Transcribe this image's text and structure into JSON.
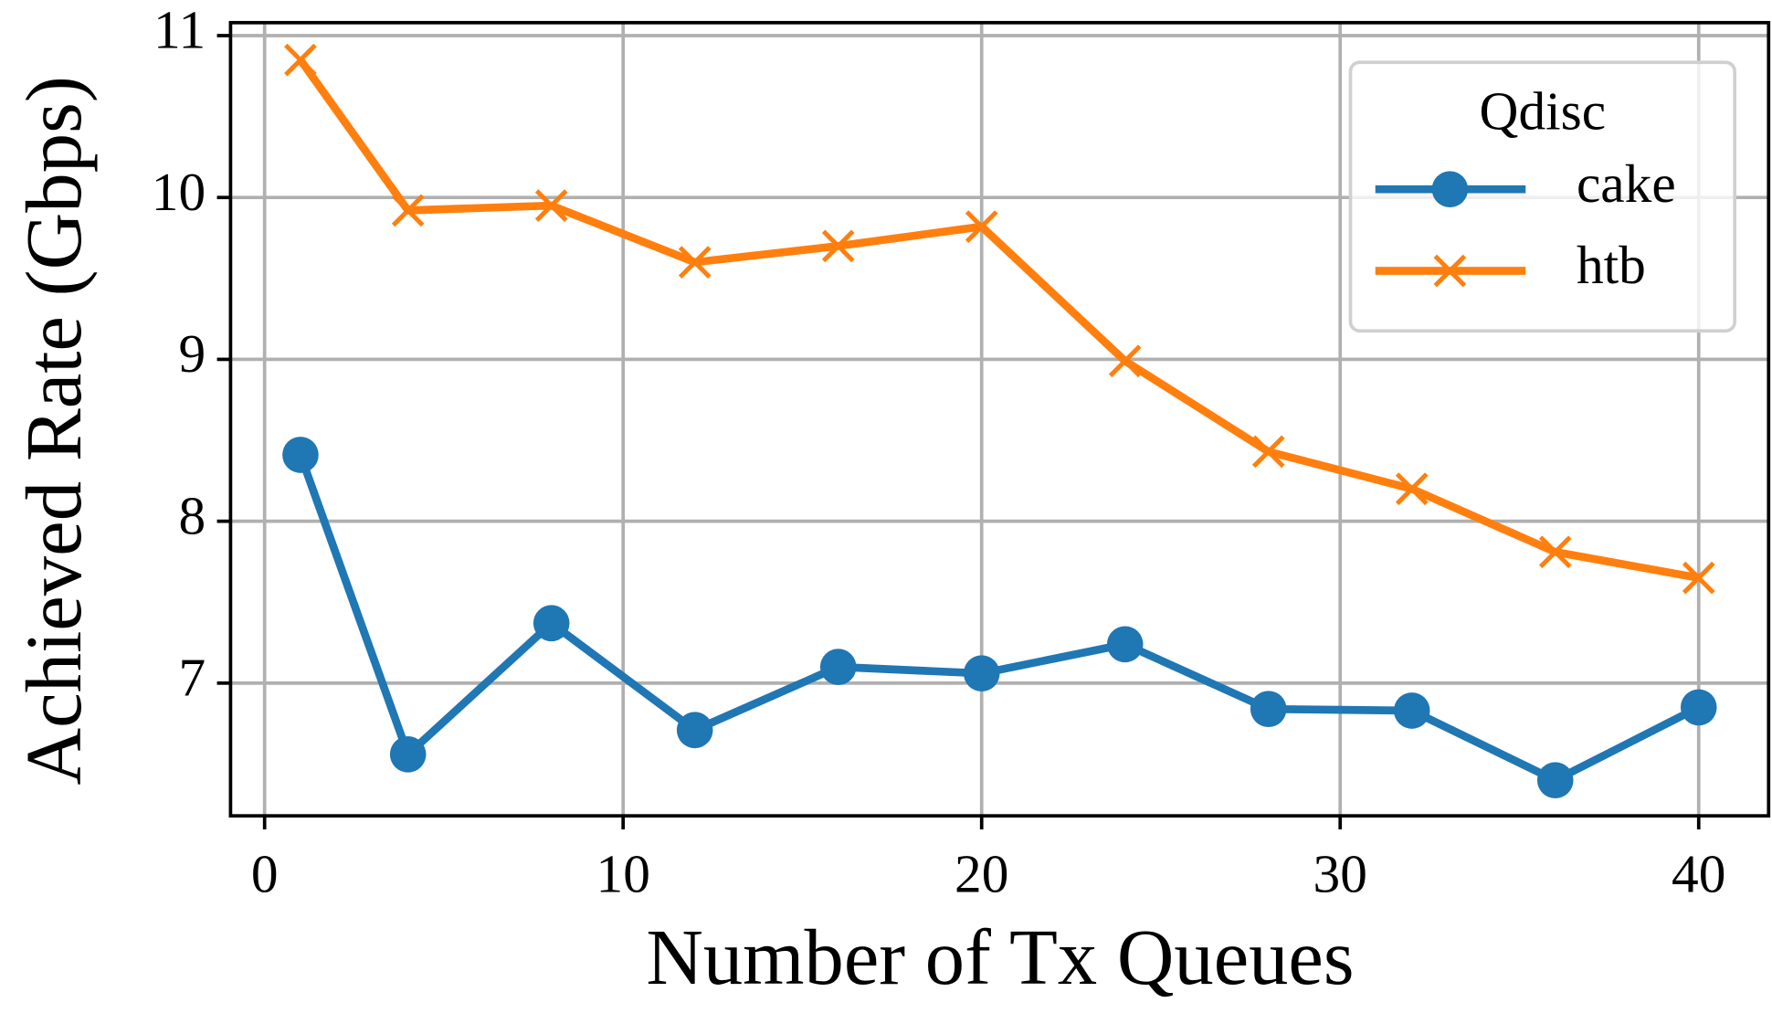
{
  "chart_data": {
    "type": "line",
    "x_label": "Number of Tx Queues",
    "y_label": "Achieved Rate (Gbps)",
    "x": [
      1,
      4,
      8,
      12,
      16,
      20,
      24,
      28,
      32,
      36,
      40
    ],
    "series": [
      {
        "name": "cake",
        "color": "#1f77b4",
        "marker": "circle",
        "values": [
          8.41,
          6.56,
          7.37,
          6.71,
          7.1,
          7.06,
          7.24,
          6.84,
          6.83,
          6.4,
          6.85
        ]
      },
      {
        "name": "htb",
        "color": "#ff7f0e",
        "marker": "x",
        "values": [
          10.85,
          9.92,
          9.95,
          9.6,
          9.7,
          9.82,
          8.99,
          8.43,
          8.2,
          7.81,
          7.65
        ]
      }
    ],
    "xlim": [
      -0.95,
      41.95
    ],
    "xticks": [
      0,
      10,
      20,
      30,
      40
    ],
    "ylim": [
      6.18,
      11.08
    ],
    "yticks": [
      7,
      8,
      9,
      10,
      11
    ],
    "grid": true,
    "legend": {
      "title": "Qdisc",
      "position": "upper right"
    }
  }
}
